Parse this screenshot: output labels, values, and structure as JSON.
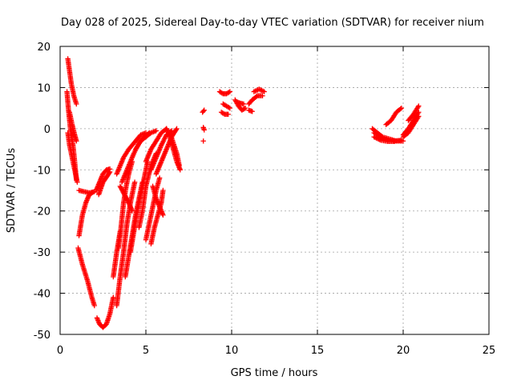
{
  "chart_data": {
    "type": "scatter",
    "title": "Day 028 of 2025, Sidereal Day-to-day VTEC variation (SDTVAR) for receiver nium",
    "xlabel": "GPS time / hours",
    "ylabel": "SDTVAR / TECUs",
    "xlim": [
      0,
      25
    ],
    "ylim": [
      -50,
      20
    ],
    "xticks": [
      0,
      5,
      10,
      15,
      20,
      25
    ],
    "yticks": [
      -50,
      -40,
      -30,
      -20,
      -10,
      0,
      10,
      20
    ],
    "grid": true,
    "marker": "plus",
    "color": "#ff0000",
    "tracks": [
      {
        "name": "arc-1",
        "points": [
          [
            0.45,
            17
          ],
          [
            0.55,
            14
          ],
          [
            0.65,
            11
          ],
          [
            0.8,
            8
          ],
          [
            0.95,
            6
          ]
        ]
      },
      {
        "name": "arc-2",
        "points": [
          [
            0.4,
            9
          ],
          [
            0.5,
            4
          ],
          [
            0.6,
            0
          ],
          [
            0.75,
            -4
          ],
          [
            0.85,
            -8
          ],
          [
            0.95,
            -12.5
          ]
        ]
      },
      {
        "name": "arc-3",
        "points": [
          [
            0.45,
            -1
          ],
          [
            0.55,
            -4
          ],
          [
            0.7,
            -7
          ],
          [
            0.85,
            -10
          ],
          [
            1.0,
            -13
          ]
        ]
      },
      {
        "name": "arc-4",
        "points": [
          [
            0.55,
            4
          ],
          [
            0.7,
            1
          ],
          [
            0.85,
            -1.5
          ],
          [
            0.95,
            -3
          ]
        ]
      },
      {
        "name": "arc-5",
        "points": [
          [
            1.1,
            -15
          ],
          [
            1.4,
            -15.3
          ],
          [
            1.7,
            -15.6
          ],
          [
            2.0,
            -15.3
          ]
        ]
      },
      {
        "name": "arc-6",
        "points": [
          [
            1.1,
            -26
          ],
          [
            1.3,
            -21
          ],
          [
            1.5,
            -18
          ],
          [
            1.7,
            -16
          ],
          [
            1.9,
            -15.5
          ]
        ]
      },
      {
        "name": "arc-7",
        "points": [
          [
            1.05,
            -29
          ],
          [
            1.3,
            -33
          ],
          [
            1.6,
            -37
          ],
          [
            1.85,
            -41
          ],
          [
            2.0,
            -43
          ]
        ]
      },
      {
        "name": "arc-8",
        "points": [
          [
            2.15,
            -46
          ],
          [
            2.3,
            -47.5
          ],
          [
            2.5,
            -48.3
          ],
          [
            2.7,
            -47.5
          ],
          [
            2.9,
            -45
          ],
          [
            3.1,
            -41
          ]
        ]
      },
      {
        "name": "arc-9",
        "points": [
          [
            2.1,
            -15
          ],
          [
            2.3,
            -13
          ],
          [
            2.5,
            -11
          ],
          [
            2.7,
            -10
          ],
          [
            2.9,
            -9.8
          ]
        ]
      },
      {
        "name": "arc-10",
        "points": [
          [
            2.25,
            -16
          ],
          [
            2.5,
            -13
          ],
          [
            2.75,
            -11.5
          ],
          [
            2.9,
            -10.5
          ]
        ]
      },
      {
        "name": "arc-11",
        "points": [
          [
            3.3,
            -43
          ],
          [
            3.5,
            -36
          ],
          [
            3.7,
            -30
          ],
          [
            3.9,
            -23
          ],
          [
            4.1,
            -18
          ],
          [
            4.35,
            -13
          ]
        ]
      },
      {
        "name": "arc-12",
        "points": [
          [
            3.4,
            -29
          ],
          [
            3.55,
            -24
          ],
          [
            3.7,
            -18
          ],
          [
            3.85,
            -14
          ],
          [
            4.0,
            -11
          ],
          [
            4.2,
            -8
          ]
        ]
      },
      {
        "name": "arc-13",
        "points": [
          [
            3.1,
            -36
          ],
          [
            3.3,
            -30
          ],
          [
            3.5,
            -25
          ]
        ]
      },
      {
        "name": "arc-14",
        "points": [
          [
            3.5,
            -14
          ],
          [
            3.75,
            -16
          ],
          [
            4.0,
            -18
          ],
          [
            4.2,
            -20
          ]
        ]
      },
      {
        "name": "arc-15",
        "points": [
          [
            3.3,
            -11
          ],
          [
            3.7,
            -7
          ],
          [
            4.0,
            -5
          ],
          [
            4.4,
            -3
          ],
          [
            4.7,
            -1.5
          ],
          [
            5.0,
            -1
          ]
        ]
      },
      {
        "name": "arc-16",
        "points": [
          [
            3.6,
            -13
          ],
          [
            4.0,
            -9
          ],
          [
            4.3,
            -6
          ],
          [
            4.6,
            -3.5
          ],
          [
            4.9,
            -2
          ],
          [
            5.2,
            -1
          ]
        ]
      },
      {
        "name": "arc-17",
        "points": [
          [
            3.8,
            -36
          ],
          [
            4.0,
            -31
          ],
          [
            4.2,
            -26
          ],
          [
            4.4,
            -21
          ],
          [
            4.6,
            -17
          ],
          [
            4.8,
            -13
          ]
        ]
      },
      {
        "name": "arc-18",
        "points": [
          [
            4.1,
            -30
          ],
          [
            4.3,
            -25
          ],
          [
            4.5,
            -20
          ],
          [
            4.7,
            -16
          ],
          [
            4.9,
            -12
          ],
          [
            5.1,
            -8
          ]
        ]
      },
      {
        "name": "arc-19",
        "points": [
          [
            4.6,
            -24
          ],
          [
            4.8,
            -20
          ],
          [
            5.0,
            -14
          ],
          [
            5.3,
            -9
          ],
          [
            5.6,
            -6
          ]
        ]
      },
      {
        "name": "arc-20",
        "points": [
          [
            5.0,
            -27
          ],
          [
            5.2,
            -23
          ],
          [
            5.4,
            -19
          ],
          [
            5.6,
            -15
          ],
          [
            5.8,
            -12
          ]
        ]
      },
      {
        "name": "arc-21",
        "points": [
          [
            5.3,
            -28
          ],
          [
            5.5,
            -24
          ],
          [
            5.7,
            -21
          ],
          [
            5.9,
            -18
          ],
          [
            6.0,
            -15
          ]
        ]
      },
      {
        "name": "arc-22",
        "points": [
          [
            4.4,
            -5
          ],
          [
            4.7,
            -3
          ],
          [
            5.0,
            -2
          ],
          [
            5.3,
            -1
          ],
          [
            5.6,
            -0.5
          ]
        ]
      },
      {
        "name": "arc-23",
        "points": [
          [
            5.0,
            -8
          ],
          [
            5.3,
            -5
          ],
          [
            5.6,
            -3
          ],
          [
            5.9,
            -1
          ],
          [
            6.2,
            0
          ]
        ]
      },
      {
        "name": "arc-24",
        "points": [
          [
            5.3,
            -10
          ],
          [
            5.6,
            -7
          ],
          [
            5.9,
            -4
          ],
          [
            6.2,
            -1.5
          ],
          [
            6.5,
            -0.5
          ]
        ]
      },
      {
        "name": "arc-25",
        "points": [
          [
            5.6,
            -11
          ],
          [
            5.9,
            -8
          ],
          [
            6.2,
            -5
          ],
          [
            6.5,
            -2
          ],
          [
            6.8,
            0
          ]
        ]
      },
      {
        "name": "arc-26",
        "points": [
          [
            6.2,
            0
          ],
          [
            6.4,
            -2
          ],
          [
            6.6,
            -5
          ],
          [
            6.8,
            -8
          ],
          [
            7.0,
            -10
          ]
        ]
      },
      {
        "name": "arc-27",
        "points": [
          [
            6.4,
            -1
          ],
          [
            6.6,
            -3.5
          ],
          [
            6.8,
            -6
          ],
          [
            6.95,
            -9
          ]
        ]
      },
      {
        "name": "arc-28",
        "points": [
          [
            5.4,
            -14
          ],
          [
            5.6,
            -17
          ],
          [
            5.8,
            -19
          ],
          [
            6.0,
            -21
          ]
        ]
      },
      {
        "name": "arc-29",
        "points": [
          [
            8.3,
            4
          ],
          [
            8.4,
            4.5
          ]
        ]
      },
      {
        "name": "arc-30",
        "points": [
          [
            8.35,
            0.3
          ],
          [
            8.4,
            -0.3
          ]
        ]
      },
      {
        "name": "arc-31",
        "points": [
          [
            8.35,
            -3
          ]
        ]
      },
      {
        "name": "arc-32",
        "points": [
          [
            9.5,
            6
          ],
          [
            9.7,
            5.5
          ],
          [
            9.9,
            5
          ]
        ]
      },
      {
        "name": "arc-33",
        "points": [
          [
            9.3,
            9
          ],
          [
            9.5,
            8.5
          ],
          [
            9.7,
            8.5
          ],
          [
            9.9,
            9
          ]
        ]
      },
      {
        "name": "arc-34",
        "points": [
          [
            9.4,
            4
          ],
          [
            9.6,
            3.5
          ],
          [
            9.8,
            3.5
          ]
        ]
      },
      {
        "name": "arc-35",
        "points": [
          [
            10.2,
            7
          ],
          [
            10.4,
            5.5
          ],
          [
            10.6,
            4.5
          ],
          [
            10.8,
            5
          ]
        ]
      },
      {
        "name": "arc-36",
        "points": [
          [
            10.3,
            6.5
          ],
          [
            10.5,
            6.2
          ],
          [
            10.7,
            6
          ]
        ]
      },
      {
        "name": "arc-37",
        "points": [
          [
            11.0,
            6
          ],
          [
            11.2,
            7
          ],
          [
            11.5,
            8
          ],
          [
            11.8,
            8
          ]
        ]
      },
      {
        "name": "arc-38",
        "points": [
          [
            11.3,
            9
          ],
          [
            11.6,
            9.6
          ],
          [
            11.9,
            9
          ]
        ]
      },
      {
        "name": "arc-39",
        "points": [
          [
            11.0,
            4.5
          ],
          [
            11.2,
            4.2
          ]
        ]
      },
      {
        "name": "arc-40",
        "points": [
          [
            18.2,
            0
          ],
          [
            18.5,
            -1
          ],
          [
            18.8,
            -2
          ],
          [
            19.2,
            -2.5
          ],
          [
            19.6,
            -3
          ],
          [
            20.0,
            -3
          ]
        ]
      },
      {
        "name": "arc-41",
        "points": [
          [
            18.3,
            -1
          ],
          [
            18.7,
            -2.2
          ],
          [
            19.1,
            -2.8
          ],
          [
            19.5,
            -3
          ],
          [
            19.9,
            -2.8
          ]
        ]
      },
      {
        "name": "arc-42",
        "points": [
          [
            18.3,
            -2
          ],
          [
            18.7,
            -2.8
          ],
          [
            19.1,
            -3.1
          ],
          [
            19.5,
            -3.1
          ]
        ]
      },
      {
        "name": "arc-43",
        "points": [
          [
            19.0,
            1
          ],
          [
            19.3,
            2
          ],
          [
            19.6,
            4
          ],
          [
            19.9,
            5
          ]
        ]
      },
      {
        "name": "arc-44",
        "points": [
          [
            20.0,
            -2
          ],
          [
            20.3,
            -1
          ],
          [
            20.6,
            1
          ],
          [
            20.9,
            3
          ]
        ]
      },
      {
        "name": "arc-45",
        "points": [
          [
            20.0,
            -1.5
          ],
          [
            20.3,
            0
          ],
          [
            20.6,
            2
          ],
          [
            20.9,
            4
          ]
        ]
      },
      {
        "name": "arc-46",
        "points": [
          [
            20.3,
            2
          ],
          [
            20.6,
            3.5
          ],
          [
            20.9,
            5.5
          ]
        ]
      }
    ]
  }
}
